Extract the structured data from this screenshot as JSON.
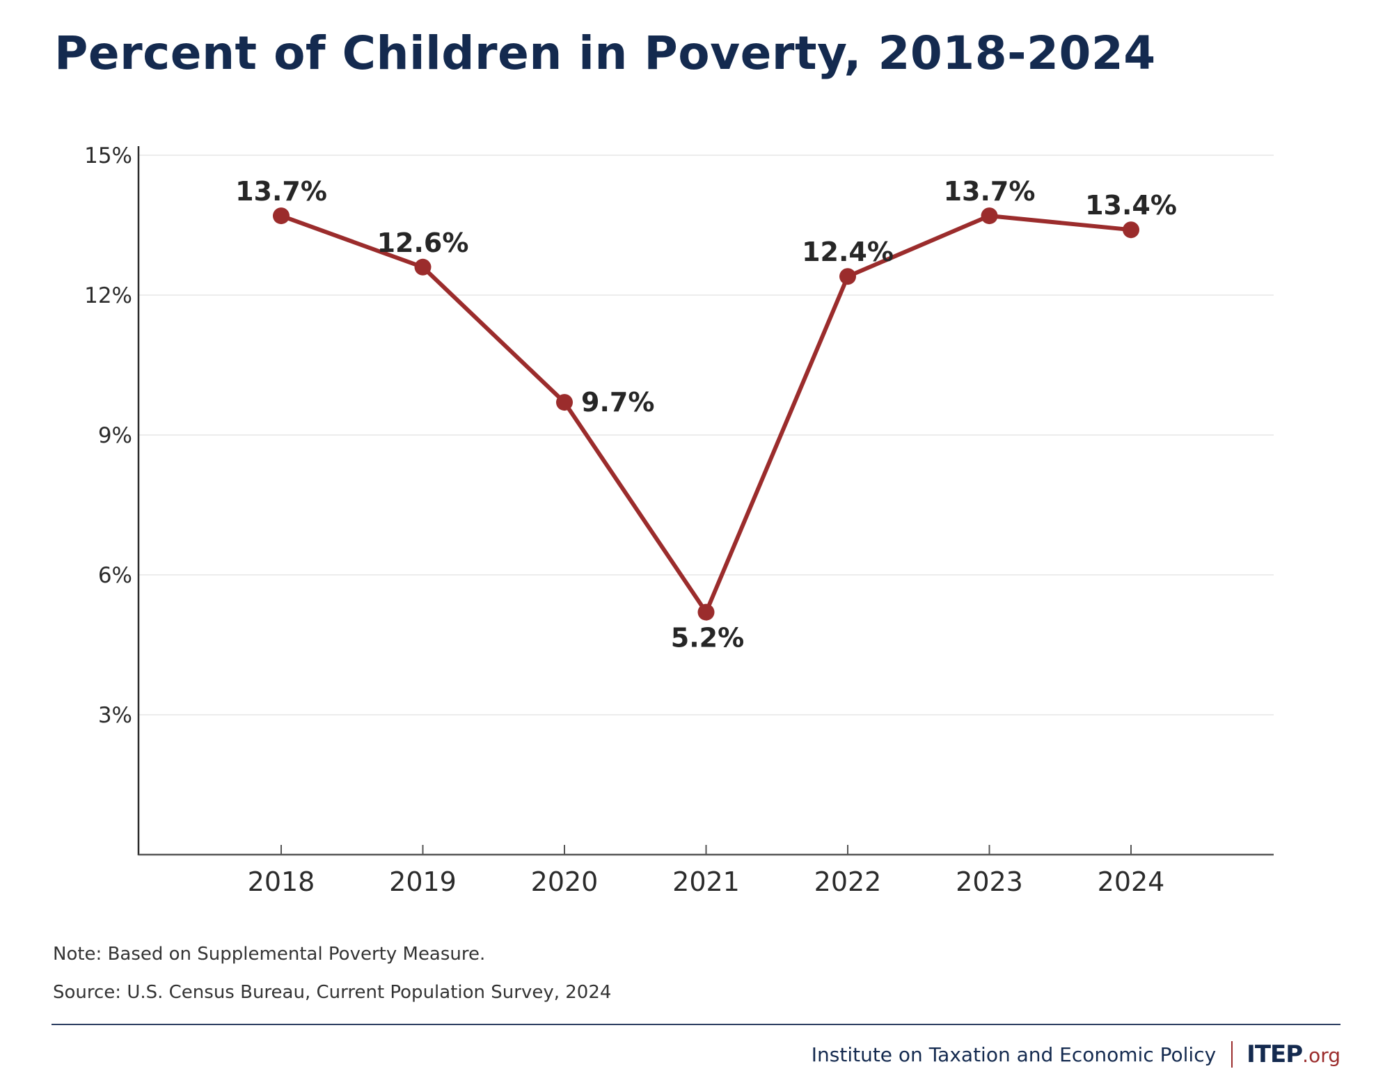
{
  "title": "Percent of Children in Poverty, 2018-2024",
  "chart_data": {
    "type": "line",
    "title": "Percent of Children in Poverty, 2018-2024",
    "xlabel": "",
    "ylabel": "",
    "categories": [
      "2018",
      "2019",
      "2020",
      "2021",
      "2022",
      "2023",
      "2024"
    ],
    "series": [
      {
        "name": "Percent of Children in Poverty",
        "values": [
          13.7,
          12.6,
          9.7,
          5.2,
          12.4,
          13.7,
          13.4
        ],
        "labels": [
          "13.7%",
          "12.6%",
          "9.7%",
          "5.2%",
          "12.4%",
          "13.7%",
          "13.4%"
        ],
        "label_positions": [
          "above",
          "above",
          "right",
          "below",
          "above",
          "above",
          "above"
        ],
        "color": "#9b2c2c"
      }
    ],
    "ylim": [
      0,
      15
    ],
    "yticks": [
      3,
      6,
      9,
      12,
      15
    ],
    "ytick_labels": [
      "3%",
      "6%",
      "9%",
      "12%",
      "15%"
    ],
    "grid": true,
    "legend": "none"
  },
  "note": "Note: Based on Supplemental Poverty Measure.",
  "source": "Source: U.S. Census Bureau, Current Population Survey, 2024",
  "footer": {
    "org_name": "Institute on Taxation and Economic Policy",
    "brand": "ITEP",
    "brand_suffix": ".org"
  },
  "colors": {
    "title": "#142a4f",
    "line": "#9b2c2c",
    "label": "#262626",
    "grid": "#ececec"
  }
}
